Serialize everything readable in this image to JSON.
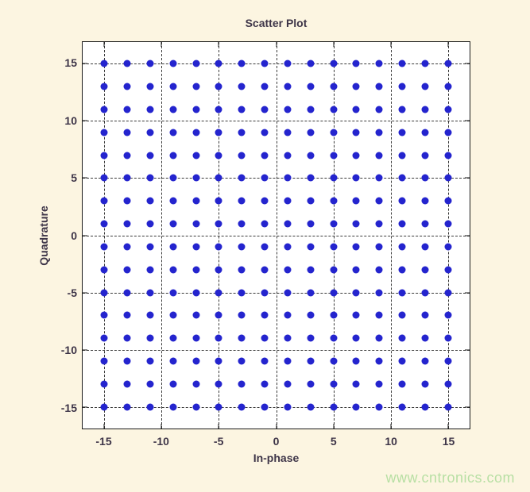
{
  "watermark": {
    "text": "www.cntronics.com",
    "color": "#B7DFA3"
  },
  "colors": {
    "figure_bg": "#FCF5E1",
    "plot_bg": "#FFFFFF",
    "axis_color": "#1A1A1A",
    "grid_color": "#3A3A3A",
    "text_color": "#3E3548",
    "marker_color": "#2424CE"
  },
  "chart_data": {
    "type": "scatter",
    "title": "Scatter Plot",
    "xlabel": "In-phase",
    "ylabel": "Quadrature",
    "xlim": [
      -16.9,
      16.9
    ],
    "ylim": [
      -16.9,
      16.9
    ],
    "x_ticks": [
      -15,
      -10,
      -5,
      0,
      5,
      10,
      15
    ],
    "y_ticks": [
      -15,
      -10,
      -5,
      0,
      5,
      10,
      15
    ],
    "grid": true,
    "grid_style": "dashed",
    "legend": "none",
    "marker": "filled-dot",
    "marker_color": "#2424CE",
    "constellation": "256-QAM square grid",
    "i_levels": [
      -15,
      -13,
      -11,
      -9,
      -7,
      -5,
      -3,
      -1,
      1,
      3,
      5,
      7,
      9,
      11,
      13,
      15
    ],
    "q_levels": [
      -15,
      -13,
      -11,
      -9,
      -7,
      -5,
      -3,
      -1,
      1,
      3,
      5,
      7,
      9,
      11,
      13,
      15
    ],
    "points": "cartesian product of i_levels x q_levels",
    "points_count": 256
  }
}
